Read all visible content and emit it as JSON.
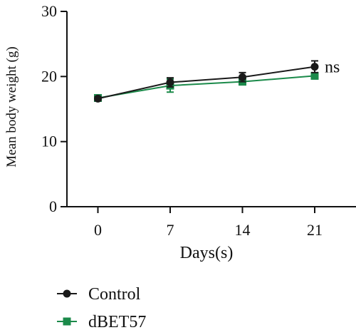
{
  "chart_data": {
    "type": "line",
    "title": "",
    "xlabel": "Days(s)",
    "ylabel": "Mean body weight (g)",
    "x": [
      0,
      7,
      14,
      21
    ],
    "x_ticks": [
      "0",
      "7",
      "14",
      "21"
    ],
    "y_ticks": [
      "0",
      "10",
      "20",
      "30"
    ],
    "xlim": [
      -3,
      25
    ],
    "ylim": [
      0,
      30
    ],
    "grid": false,
    "legend_position": "bottom-left",
    "series": [
      {
        "name": "Control",
        "marker": "circle",
        "color": "#1a1a1a",
        "values": [
          16.6,
          19.1,
          19.9,
          21.5
        ],
        "error": [
          0.3,
          0.7,
          0.7,
          0.9
        ]
      },
      {
        "name": "dBET57",
        "marker": "square",
        "color": "#1b8a4a",
        "values": [
          16.7,
          18.6,
          19.2,
          20.1
        ],
        "error": [
          0.3,
          1.0,
          0.3,
          0.4
        ]
      }
    ],
    "annotations": [
      {
        "text": "ns",
        "x": 21,
        "y": 21.5
      }
    ]
  }
}
